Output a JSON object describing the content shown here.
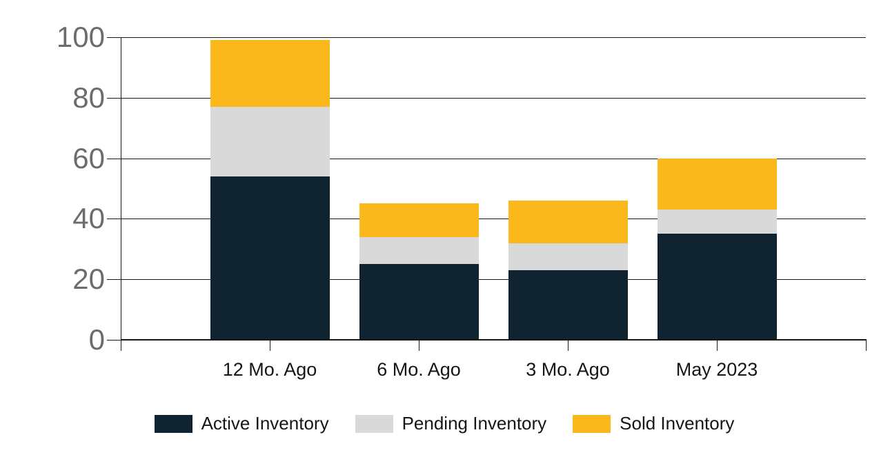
{
  "chart_data": {
    "type": "bar",
    "stacked": true,
    "title": "",
    "xlabel": "",
    "ylabel": "",
    "categories": [
      "12 Mo. Ago",
      "6 Mo. Ago",
      "3 Mo. Ago",
      "May 2023"
    ],
    "series": [
      {
        "name": "Active Inventory",
        "color": "#0E222F",
        "values": [
          54,
          25,
          23,
          35
        ]
      },
      {
        "name": "Pending Inventory",
        "color": "#D9D9D9",
        "values": [
          23,
          9,
          9,
          8
        ]
      },
      {
        "name": "Sold Inventory",
        "color": "#FBB81C",
        "values": [
          22,
          11,
          14,
          17
        ]
      }
    ],
    "stack_totals": [
      99,
      45,
      46,
      60
    ],
    "ylim": [
      0,
      100
    ],
    "yticks": [
      0,
      20,
      40,
      60,
      80,
      100
    ],
    "grid": true,
    "legend_position": "bottom"
  },
  "colors": {
    "background": "#FFFFFF",
    "grid_line": "#161616",
    "axis_line": "#161616",
    "y_tick_label": "#6C6C6C",
    "x_tick_label": "#161616",
    "legend_label": "#161616"
  }
}
